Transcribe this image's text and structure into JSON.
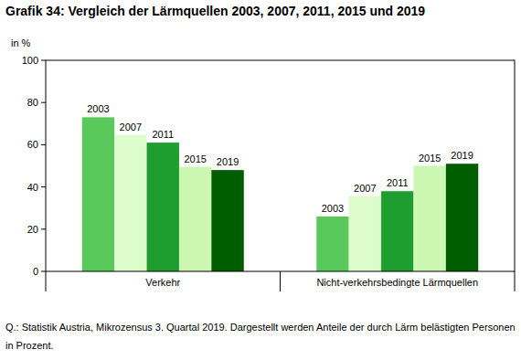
{
  "chart_data": {
    "type": "bar",
    "title": "Grafik 34: Vergleich der Lärmquellen 2003, 2007, 2011, 2015 und 2019",
    "y_label": "in %",
    "note": "Q.: Statistik Austria, Mikrozensus 3. Quartal 2019. Dargestellt werden Anteile der durch Lärm belästigten Personen in Prozent.",
    "categories": [
      "Verkehr",
      "Nicht-verkehrsbedingte Lärmquellen"
    ],
    "series": [
      {
        "name": "2003",
        "color": "#58c95a",
        "values": [
          73,
          26
        ]
      },
      {
        "name": "2007",
        "color": "#dcfccb",
        "values": [
          64.5,
          35.5
        ]
      },
      {
        "name": "2011",
        "color": "#1e9e2e",
        "values": [
          61,
          38
        ]
      },
      {
        "name": "2015",
        "color": "#ccf7b2",
        "values": [
          49.5,
          50
        ]
      },
      {
        "name": "2019",
        "color": "#005e00",
        "values": [
          48,
          51
        ]
      }
    ],
    "ylim": [
      0,
      100
    ],
    "yticks": [
      0,
      20,
      40,
      60,
      80,
      100
    ],
    "grid": false,
    "data_labels": false
  }
}
